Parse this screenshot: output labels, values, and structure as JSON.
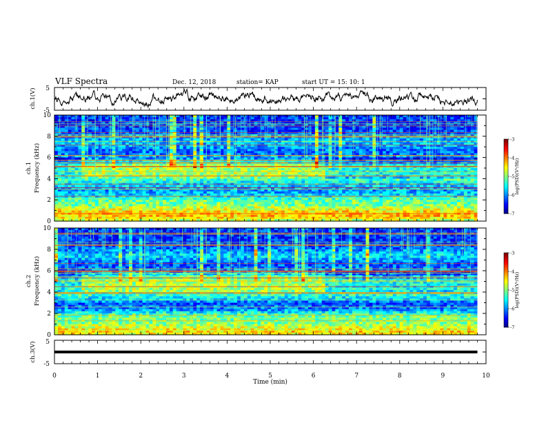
{
  "header": {
    "title": "VLF  Spectra",
    "date": "Dec. 12,  2018",
    "station": "station= KAP",
    "start": "start  UT  =    15: 10: 1"
  },
  "chart_data": [
    {
      "type": "line",
      "name": "ch1-waveform",
      "ylabel": "ch.1(V)",
      "ylim": [
        -5,
        5
      ],
      "yticks": [
        "5",
        "-5"
      ],
      "xlim": [
        0,
        10
      ],
      "data_end_min": 9.8,
      "baseline": 0.4,
      "amplitude": 2.2
    },
    {
      "type": "heatmap",
      "name": "ch1-spectrogram",
      "ylabel": "ch.1\nFrequency  (kHz)",
      "ylim": [
        0,
        10
      ],
      "yticks": [
        "0",
        "2",
        "4",
        "6",
        "8",
        "10"
      ],
      "xlim": [
        0,
        10
      ],
      "data_end_min": 9.8,
      "colorbar": {
        "label": "log(PSD)(V²/Hz)",
        "range": [
          -7,
          -3
        ],
        "ticks": [
          "-3",
          "-4",
          "-5",
          "-6",
          "-7"
        ]
      },
      "profile": [
        [
          0,
          -4.9
        ],
        [
          0.25,
          -4.4
        ],
        [
          0.6,
          -4.2
        ],
        [
          1.0,
          -4.5
        ],
        [
          1.5,
          -5.0
        ],
        [
          2.0,
          -5.1
        ],
        [
          2.4,
          -5.6
        ],
        [
          2.9,
          -5.9
        ],
        [
          3.5,
          -5.6
        ],
        [
          4.4,
          -4.8
        ],
        [
          5.2,
          -4.8
        ],
        [
          5.9,
          -5.9
        ],
        [
          6.6,
          -6.1
        ],
        [
          7.4,
          -5.7
        ],
        [
          8.5,
          -6.2
        ],
        [
          10,
          -6.3
        ]
      ]
    },
    {
      "type": "heatmap",
      "name": "ch2-spectrogram",
      "ylabel": "ch.2\nFrequency  (kHz)",
      "ylim": [
        0,
        10
      ],
      "yticks": [
        "0",
        "2",
        "4",
        "6",
        "8",
        "10"
      ],
      "xlim": [
        0,
        10
      ],
      "data_end_min": 9.8,
      "colorbar": {
        "label": "log(PSD)(V²/Hz)",
        "range": [
          -7,
          -3
        ],
        "ticks": [
          "-3",
          "-4",
          "-5",
          "-6",
          "-7"
        ]
      },
      "profile": [
        [
          0,
          -4.6
        ],
        [
          0.2,
          -4.3
        ],
        [
          0.6,
          -4.6
        ],
        [
          1.2,
          -5.0
        ],
        [
          1.8,
          -5.1
        ],
        [
          2.4,
          -6.0
        ],
        [
          2.9,
          -6.2
        ],
        [
          3.5,
          -5.5
        ],
        [
          4.3,
          -4.8
        ],
        [
          5.2,
          -4.9
        ],
        [
          5.9,
          -5.9
        ],
        [
          6.6,
          -6.2
        ],
        [
          7.4,
          -5.6
        ],
        [
          8.5,
          -6.3
        ],
        [
          10,
          -6.3
        ]
      ]
    },
    {
      "type": "line",
      "name": "ch3-waveform",
      "ylabel": "ch.3(V)",
      "ylim": [
        -5,
        5
      ],
      "yticks": [
        "5",
        "-5"
      ],
      "xlim": [
        0,
        10
      ],
      "data_end_min": 9.8,
      "baseline": 0.0,
      "amplitude": 0.0
    }
  ],
  "x_axis": {
    "label": "Time  (min)",
    "ticks": [
      "0",
      "1",
      "2",
      "3",
      "4",
      "5",
      "6",
      "7",
      "8",
      "9",
      "10"
    ]
  }
}
